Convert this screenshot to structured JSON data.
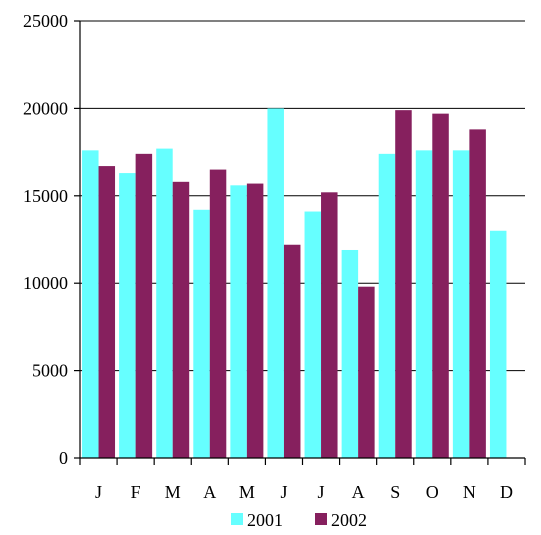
{
  "chart_data": {
    "type": "bar",
    "title": "",
    "xlabel": "",
    "ylabel": "",
    "categories": [
      "J",
      "F",
      "M",
      "A",
      "M",
      "J",
      "J",
      "A",
      "S",
      "O",
      "N",
      "D"
    ],
    "series": [
      {
        "name": "2001",
        "color": "#66ffff",
        "values": [
          17600,
          16300,
          17700,
          14200,
          15600,
          20000,
          14100,
          11900,
          17400,
          17600,
          17600,
          13000
        ]
      },
      {
        "name": "2002",
        "color": "#86205e",
        "values": [
          16700,
          17400,
          15800,
          16500,
          15700,
          12200,
          15200,
          9800,
          19900,
          19700,
          18800,
          null
        ]
      }
    ],
    "ylim": [
      0,
      25000
    ],
    "yticks": [
      0,
      5000,
      10000,
      15000,
      20000,
      25000
    ],
    "grid": true,
    "legend": "bottom"
  }
}
